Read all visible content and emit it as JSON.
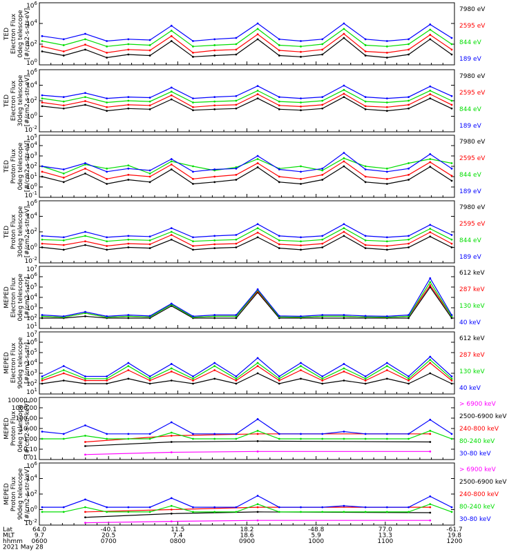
{
  "colors": {
    "blue": "#0000ff",
    "red": "#ff0000",
    "green": "#00dd00",
    "black": "#000000",
    "magenta": "#ff00ff"
  },
  "chart_data": [
    {
      "type": "line",
      "ylabel": [
        "TED",
        "Electron Flux",
        "0deg telescope",
        "[#/cm2-s-str-eV]"
      ],
      "yscale": "log",
      "ylim": [
        1,
        1000000
      ],
      "yticks": [
        "10^6",
        "10^4",
        "10^2",
        "10^0"
      ],
      "series": [
        {
          "name": "7980 eV",
          "color": "black",
          "values": [
            20,
            8,
            30,
            5,
            10,
            8,
            200,
            6,
            8,
            10,
            300,
            8,
            6,
            10,
            400,
            8,
            5,
            10,
            300,
            10
          ]
        },
        {
          "name": "2595 eV",
          "color": "red",
          "values": [
            60,
            20,
            90,
            15,
            30,
            25,
            600,
            15,
            25,
            30,
            900,
            25,
            18,
            30,
            1000,
            20,
            15,
            30,
            800,
            30
          ]
        },
        {
          "name": "844 eV",
          "color": "green",
          "values": [
            200,
            80,
            300,
            60,
            100,
            80,
            2000,
            60,
            80,
            100,
            3000,
            80,
            60,
            100,
            3000,
            80,
            60,
            100,
            2500,
            100
          ]
        },
        {
          "name": "189 eV",
          "color": "blue",
          "values": [
            600,
            300,
            1000,
            200,
            300,
            250,
            6000,
            200,
            300,
            400,
            10000,
            300,
            200,
            300,
            10000,
            300,
            200,
            300,
            8000,
            400
          ]
        }
      ]
    },
    {
      "type": "line",
      "ylabel": [
        "TED",
        "Electron Flux",
        "30deg telescope",
        "[#/cm2-s-str-eV]"
      ],
      "yscale": "log",
      "ylim": [
        0.01,
        1000000
      ],
      "yticks": [
        "10^6",
        "10^4",
        "10^2",
        "10^0",
        "10^-2"
      ],
      "series": [
        {
          "name": "7980 eV",
          "color": "black",
          "values": [
            20,
            10,
            30,
            5,
            10,
            8,
            150,
            6,
            8,
            10,
            200,
            8,
            6,
            10,
            300,
            8,
            5,
            10,
            200,
            10
          ]
        },
        {
          "name": "2595 eV",
          "color": "red",
          "values": [
            60,
            25,
            90,
            15,
            30,
            25,
            500,
            15,
            25,
            30,
            700,
            25,
            18,
            30,
            800,
            20,
            15,
            30,
            700,
            30
          ]
        },
        {
          "name": "844 eV",
          "color": "green",
          "values": [
            200,
            80,
            300,
            60,
            100,
            80,
            1500,
            60,
            80,
            100,
            2000,
            80,
            60,
            100,
            2500,
            80,
            60,
            100,
            2000,
            100
          ]
        },
        {
          "name": "189 eV",
          "color": "blue",
          "values": [
            500,
            300,
            1000,
            200,
            300,
            250,
            5000,
            200,
            300,
            400,
            8000,
            300,
            200,
            300,
            9000,
            300,
            200,
            300,
            7000,
            400
          ]
        }
      ]
    },
    {
      "type": "line",
      "ylabel": [
        "TED",
        "Proton Flux",
        "0deg telescope",
        "[#/cm2-s-str-eV]"
      ],
      "yscale": "log",
      "ylim": [
        0.1,
        100000
      ],
      "yticks": [
        "10^5",
        "10^4",
        "10^3",
        "10^2",
        "10^1",
        "10^0",
        "10^-1"
      ],
      "series": [
        {
          "name": "7980 eV",
          "color": "black",
          "values": [
            10,
            3,
            20,
            2,
            5,
            3,
            50,
            2,
            3,
            5,
            80,
            3,
            2,
            5,
            100,
            3,
            2,
            5,
            90,
            4
          ]
        },
        {
          "name": "2595 eV",
          "color": "red",
          "values": [
            30,
            8,
            60,
            6,
            15,
            10,
            150,
            6,
            10,
            15,
            200,
            10,
            6,
            15,
            300,
            10,
            6,
            15,
            250,
            12
          ]
        },
        {
          "name": "844 eV",
          "color": "green",
          "values": [
            100,
            20,
            150,
            60,
            120,
            20,
            300,
            100,
            40,
            80,
            500,
            60,
            100,
            40,
            600,
            100,
            60,
            200,
            500,
            200
          ]
        },
        {
          "name": "189 eV",
          "color": "blue",
          "values": [
            100,
            50,
            200,
            30,
            60,
            40,
            500,
            30,
            50,
            60,
            1000,
            50,
            30,
            60,
            2000,
            50,
            30,
            60,
            1500,
            60
          ]
        }
      ]
    },
    {
      "type": "line",
      "ylabel": [
        "TED",
        "Proton Flux",
        "30deg telescope",
        "[#/cm2-s-str-eV]"
      ],
      "yscale": "log",
      "ylim": [
        0.01,
        1000000
      ],
      "yticks": [
        "10^6",
        "10^4",
        "10^2",
        "10^0",
        "10^-2"
      ],
      "series": [
        {
          "name": "7980 eV",
          "color": "black",
          "values": [
            1,
            0.5,
            2,
            0.5,
            1,
            0.8,
            10,
            0.5,
            0.8,
            1,
            20,
            0.8,
            0.5,
            1,
            30,
            0.8,
            0.5,
            1,
            25,
            1
          ]
        },
        {
          "name": "2595 eV",
          "color": "red",
          "values": [
            3,
            2,
            6,
            1.5,
            3,
            2.5,
            40,
            1.5,
            2.5,
            3,
            80,
            2.5,
            1.8,
            3,
            100,
            2,
            1.5,
            3,
            90,
            3
          ]
        },
        {
          "name": "844 eV",
          "color": "green",
          "values": [
            10,
            8,
            30,
            6,
            10,
            8,
            100,
            6,
            8,
            10,
            300,
            8,
            6,
            10,
            300,
            8,
            6,
            10,
            250,
            10
          ]
        },
        {
          "name": "189 eV",
          "color": "blue",
          "values": [
            30,
            20,
            100,
            20,
            30,
            25,
            300,
            20,
            30,
            40,
            1000,
            30,
            20,
            30,
            1000,
            30,
            20,
            30,
            800,
            40
          ]
        }
      ]
    },
    {
      "type": "line",
      "ylabel": [
        "MEPED",
        "Electron Flux",
        "0deg telescope",
        "[#/cm2-s-str]"
      ],
      "yscale": "log",
      "ylim": [
        10,
        10000000
      ],
      "yticks": [
        "10^7",
        "10^6",
        "10^5",
        "10^4",
        "10^3",
        "10^2",
        "10^1"
      ],
      "series": [
        {
          "name": "612 keV",
          "color": "black",
          "values": [
            100,
            100,
            150,
            100,
            100,
            100,
            1500,
            100,
            100,
            100,
            30000,
            100,
            100,
            100,
            100,
            100,
            100,
            100,
            100000,
            100
          ]
        },
        {
          "name": "287 keV",
          "color": "red",
          "values": [
            150,
            120,
            300,
            120,
            150,
            130,
            2000,
            120,
            150,
            150,
            40000,
            130,
            120,
            150,
            150,
            130,
            120,
            150,
            150000,
            150
          ]
        },
        {
          "name": "130 keV",
          "color": "green",
          "values": [
            150,
            120,
            300,
            120,
            150,
            130,
            2000,
            120,
            150,
            150,
            50000,
            130,
            120,
            150,
            150,
            130,
            120,
            150,
            300000,
            150
          ]
        },
        {
          "name": "40 keV",
          "color": "blue",
          "values": [
            200,
            150,
            400,
            150,
            200,
            160,
            2500,
            150,
            200,
            200,
            60000,
            160,
            150,
            200,
            200,
            160,
            150,
            200,
            700000,
            200
          ]
        }
      ]
    },
    {
      "type": "line",
      "ylabel": [
        "MEPED",
        "Electron Flux",
        "90deg telescope",
        "[#/cm2-s-str]"
      ],
      "yscale": "log",
      "ylim": [
        10,
        10000000
      ],
      "yticks": [
        "10^7",
        "10^6",
        "10^5",
        "10^4",
        "10^3",
        "10^2",
        "10^1"
      ],
      "series": [
        {
          "name": "612 keV",
          "color": "black",
          "values": [
            100,
            200,
            100,
            100,
            300,
            100,
            200,
            100,
            300,
            100,
            1000,
            100,
            300,
            100,
            200,
            100,
            300,
            100,
            1000,
            100
          ]
        },
        {
          "name": "287 keV",
          "color": "red",
          "values": [
            200,
            1000,
            200,
            200,
            2000,
            200,
            1500,
            200,
            2000,
            200,
            5000,
            200,
            2000,
            200,
            1500,
            200,
            2000,
            200,
            10000,
            200
          ]
        },
        {
          "name": "130 keV",
          "color": "green",
          "values": [
            300,
            2000,
            300,
            300,
            5000,
            300,
            3000,
            300,
            5000,
            300,
            10000,
            300,
            5000,
            300,
            3000,
            300,
            5000,
            300,
            20000,
            300
          ]
        },
        {
          "name": "40 keV",
          "color": "blue",
          "values": [
            500,
            5000,
            500,
            500,
            10000,
            500,
            8000,
            500,
            10000,
            500,
            30000,
            500,
            10000,
            500,
            8000,
            500,
            10000,
            500,
            40000,
            500
          ]
        }
      ]
    },
    {
      "type": "line",
      "ylabel": [
        "MEPED",
        "Proton Flux",
        "0deg telescope",
        "[#/cm2-s-str-keV]"
      ],
      "yscale": "log",
      "ylim": [
        0.01,
        10000
      ],
      "yticks": [
        "10000.00",
        "1000.00",
        "100.00",
        "10.00",
        "1.00",
        "0.10",
        "0.01"
      ],
      "series": [
        {
          "name": "> 6900 keV",
          "color": "magenta",
          "values": [
            null,
            null,
            0.03,
            null,
            null,
            null,
            0.05,
            null,
            null,
            null,
            0.06,
            null,
            null,
            null,
            null,
            null,
            null,
            null,
            0.06,
            null
          ]
        },
        {
          "name": "2500-6900 keV",
          "color": "black",
          "values": [
            null,
            null,
            0.2,
            null,
            null,
            null,
            0.5,
            null,
            null,
            null,
            0.6,
            null,
            null,
            null,
            null,
            null,
            null,
            null,
            0.5,
            null
          ]
        },
        {
          "name": "240-800 keV",
          "color": "red",
          "values": [
            null,
            null,
            0.5,
            null,
            null,
            null,
            2,
            null,
            null,
            null,
            3,
            null,
            null,
            null,
            null,
            null,
            null,
            null,
            3,
            null
          ]
        },
        {
          "name": "80-240 keV",
          "color": "green",
          "values": [
            1,
            1,
            2,
            1,
            1,
            1,
            4,
            1,
            1,
            1,
            6,
            1,
            1,
            1,
            1,
            1,
            1,
            1,
            6,
            1
          ]
        },
        {
          "name": "30-80 keV",
          "color": "blue",
          "values": [
            5,
            3,
            20,
            3,
            3,
            3,
            40,
            3,
            3,
            3,
            80,
            3,
            3,
            3,
            5,
            3,
            3,
            3,
            70,
            3
          ]
        }
      ]
    },
    {
      "type": "line",
      "ylabel": [
        "MEPED",
        "Proton Flux",
        "90deg telescope",
        "[#/cm2-s-str-keV]"
      ],
      "yscale": "log",
      "ylim": [
        0.01,
        1000000
      ],
      "yticks": [
        "10^6",
        "10^4",
        "10^2",
        "10^0",
        "10^-2"
      ],
      "series": [
        {
          "name": "> 6900 keV",
          "color": "magenta",
          "values": [
            null,
            null,
            0.02,
            null,
            null,
            null,
            0.03,
            null,
            null,
            null,
            0.04,
            null,
            null,
            null,
            null,
            null,
            null,
            null,
            0.04,
            null
          ]
        },
        {
          "name": "2500-6900 keV",
          "color": "black",
          "values": [
            null,
            null,
            0.1,
            null,
            null,
            null,
            0.3,
            null,
            null,
            null,
            0.5,
            null,
            null,
            null,
            null,
            null,
            null,
            null,
            0.4,
            null
          ]
        },
        {
          "name": "240-800 keV",
          "color": "red",
          "values": [
            null,
            null,
            0.5,
            null,
            null,
            null,
            1,
            null,
            null,
            null,
            2,
            null,
            null,
            null,
            null,
            null,
            null,
            null,
            2,
            null
          ]
        },
        {
          "name": "80-240 keV",
          "color": "green",
          "values": [
            0.5,
            0.5,
            2,
            0.5,
            0.5,
            0.5,
            3,
            0.5,
            0.5,
            0.5,
            5,
            0.5,
            0.5,
            0.5,
            0.5,
            0.5,
            0.5,
            0.5,
            5,
            0.5
          ]
        },
        {
          "name": "30-80 keV",
          "color": "blue",
          "values": [
            2,
            2,
            20,
            2,
            2,
            2,
            30,
            2,
            2,
            2,
            60,
            2,
            2,
            2,
            3,
            2,
            2,
            2,
            50,
            2
          ]
        }
      ]
    }
  ],
  "xaxis": {
    "row_labels": [
      "Lat",
      "MLT",
      "hhmm",
      "2021 May 28"
    ],
    "columns": [
      {
        "lat": "64.0",
        "mlt": "9.7",
        "hhmm": "0600"
      },
      {
        "lat": "-40.1",
        "mlt": "20.5",
        "hhmm": "0700"
      },
      {
        "lat": "11.5",
        "mlt": "7.4",
        "hhmm": "0800"
      },
      {
        "lat": "18.2",
        "mlt": "18.6",
        "hhmm": "0900"
      },
      {
        "lat": "-48.8",
        "mlt": "5.9",
        "hhmm": "1000"
      },
      {
        "lat": "77.0",
        "mlt": "13.3",
        "hhmm": "1100"
      },
      {
        "lat": "-61.7",
        "mlt": "19.8",
        "hhmm": "1200"
      }
    ]
  }
}
